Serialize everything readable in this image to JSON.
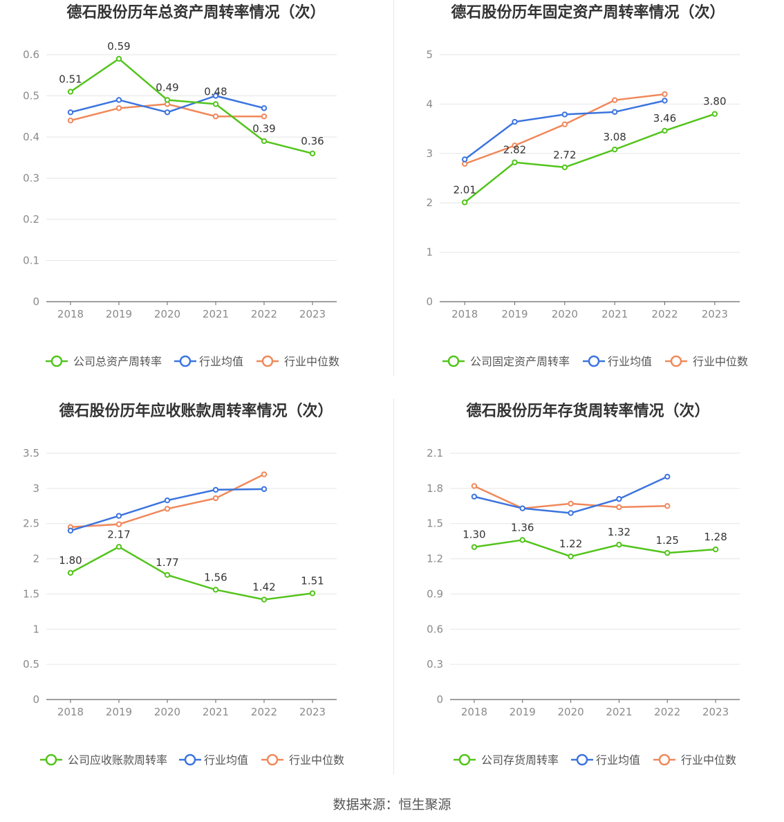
{
  "source_label": "数据来源：恒生聚源",
  "colors": {
    "company": "#52c41a",
    "avg": "#3b74df",
    "median": "#f0885a",
    "grid": "#e6e6e6",
    "axis": "#666666",
    "tick": "#8a8a8a"
  },
  "chart_data": [
    {
      "type": "line",
      "title": "德石股份历年总资产周转率情况（次）",
      "categories": [
        "2018",
        "2019",
        "2020",
        "2021",
        "2022",
        "2023"
      ],
      "ylim": [
        0,
        0.6
      ],
      "yticks": [
        "0",
        "0.1",
        "0.2",
        "0.3",
        "0.4",
        "0.5",
        "0.6"
      ],
      "series": [
        {
          "name": "公司总资产周转率",
          "color": "#52c41a",
          "values": [
            0.51,
            0.59,
            0.49,
            0.48,
            0.39,
            0.36
          ],
          "labels": [
            "0.51",
            "0.59",
            "0.49",
            "0.48",
            "0.39",
            "0.36"
          ]
        },
        {
          "name": "行业均值",
          "color": "#3b74df",
          "values": [
            0.46,
            0.49,
            0.46,
            0.5,
            0.47,
            null
          ]
        },
        {
          "name": "行业中位数",
          "color": "#f0885a",
          "values": [
            0.44,
            0.47,
            0.48,
            0.45,
            0.45,
            null
          ]
        }
      ],
      "legend_position": "bottom"
    },
    {
      "type": "line",
      "title": "德石股份历年固定资产周转率情况（次）",
      "categories": [
        "2018",
        "2019",
        "2020",
        "2021",
        "2022",
        "2023"
      ],
      "ylim": [
        0,
        5
      ],
      "yticks": [
        "0",
        "1",
        "2",
        "3",
        "4",
        "5"
      ],
      "series": [
        {
          "name": "公司固定资产周转率",
          "color": "#52c41a",
          "values": [
            2.01,
            2.82,
            2.72,
            3.08,
            3.46,
            3.8
          ],
          "labels": [
            "2.01",
            "2.82",
            "2.72",
            "3.08",
            "3.46",
            "3.80"
          ]
        },
        {
          "name": "行业均值",
          "color": "#3b74df",
          "values": [
            2.88,
            3.64,
            3.79,
            3.84,
            4.07,
            null
          ]
        },
        {
          "name": "行业中位数",
          "color": "#f0885a",
          "values": [
            2.79,
            3.16,
            3.59,
            4.08,
            4.2,
            null
          ]
        }
      ],
      "legend_position": "bottom"
    },
    {
      "type": "line",
      "title": "德石股份历年应收账款周转率情况（次）",
      "categories": [
        "2018",
        "2019",
        "2020",
        "2021",
        "2022",
        "2023"
      ],
      "ylim": [
        0,
        3.5
      ],
      "yticks": [
        "0",
        "0.5",
        "1",
        "1.5",
        "2",
        "2.5",
        "3",
        "3.5"
      ],
      "series": [
        {
          "name": "公司应收账款周转率",
          "color": "#52c41a",
          "values": [
            1.8,
            2.17,
            1.77,
            1.56,
            1.42,
            1.51
          ],
          "labels": [
            "1.80",
            "2.17",
            "1.77",
            "1.56",
            "1.42",
            "1.51"
          ]
        },
        {
          "name": "行业均值",
          "color": "#3b74df",
          "values": [
            2.4,
            2.61,
            2.83,
            2.98,
            2.99,
            null
          ]
        },
        {
          "name": "行业中位数",
          "color": "#f0885a",
          "values": [
            2.45,
            2.49,
            2.71,
            2.86,
            3.2,
            null
          ]
        }
      ],
      "legend_position": "bottom"
    },
    {
      "type": "line",
      "title": "德石股份历年存货周转率情况（次）",
      "categories": [
        "2018",
        "2019",
        "2020",
        "2021",
        "2022",
        "2023"
      ],
      "ylim": [
        0,
        2.1
      ],
      "yticks": [
        "0",
        "0.3",
        "0.6",
        "0.9",
        "1.2",
        "1.5",
        "1.8",
        "2.1"
      ],
      "series": [
        {
          "name": "公司存货周转率",
          "color": "#52c41a",
          "values": [
            1.3,
            1.36,
            1.22,
            1.32,
            1.25,
            1.28
          ],
          "labels": [
            "1.30",
            "1.36",
            "1.22",
            "1.32",
            "1.25",
            "1.28"
          ]
        },
        {
          "name": "行业均值",
          "color": "#3b74df",
          "values": [
            1.73,
            1.63,
            1.59,
            1.71,
            1.9,
            null
          ]
        },
        {
          "name": "行业中位数",
          "color": "#f0885a",
          "values": [
            1.82,
            1.63,
            1.67,
            1.64,
            1.65,
            null
          ]
        }
      ],
      "legend_position": "bottom"
    }
  ]
}
